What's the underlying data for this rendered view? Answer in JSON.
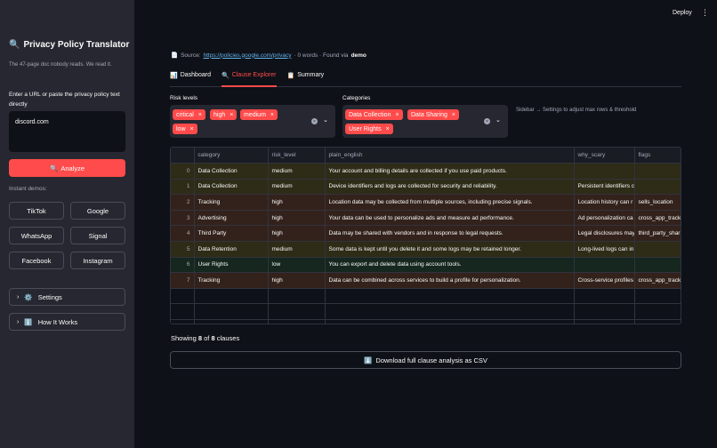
{
  "sidebar": {
    "title_icon": "🔍",
    "title": "Privacy Policy Translator",
    "subtitle": "The 47-page doc nobody reads. We read it.",
    "input_label": "Enter a URL or paste the privacy policy text directly",
    "input_value": "discord.com",
    "analyze_icon": "🔍",
    "analyze_label": "Analyze",
    "demos_label": "Instant demos:",
    "demos": [
      "TikTok",
      "Google",
      "WhatsApp",
      "Signal",
      "Facebook",
      "Instagram"
    ],
    "settings_icon": "⚙️",
    "settings_label": "Settings",
    "how_icon": "ℹ️",
    "how_label": "How It Works"
  },
  "topbar": {
    "deploy": "Deploy",
    "menu": "⋮"
  },
  "source": {
    "icon": "📄",
    "label": "Source:",
    "url": "https://policies.google.com/privacy",
    "stats": "· 0 words · Found via",
    "via": "demo"
  },
  "tabs": [
    {
      "icon": "📊",
      "label": "Dashboard",
      "active": false
    },
    {
      "icon": "🔍",
      "label": "Clause Explorer",
      "active": true
    },
    {
      "icon": "📋",
      "label": "Summary",
      "active": false
    }
  ],
  "filters": {
    "risk_label": "Risk levels",
    "risk_chips": [
      "critical",
      "high",
      "medium",
      "low"
    ],
    "cat_label": "Categories",
    "cat_chips": [
      "Data Collection",
      "Data Sharing",
      "User Rights"
    ],
    "hint": "Sidebar → Settings to adjust max rows & threshold"
  },
  "table": {
    "columns": [
      "",
      "category",
      "risk_level",
      "plain_english",
      "why_scary",
      "flags"
    ],
    "rows": [
      {
        "idx": "0",
        "category": "Data Collection",
        "risk": "medium",
        "plain": "Your account and billing details are collected if you use paid products.",
        "why": "",
        "flags": ""
      },
      {
        "idx": "1",
        "category": "Data Collection",
        "risk": "medium",
        "plain": "Device identifiers and logs are collected for security and reliability.",
        "why": "Persistent identifiers c",
        "flags": ""
      },
      {
        "idx": "2",
        "category": "Tracking",
        "risk": "high",
        "plain": "Location data may be collected from multiple sources, including precise signals.",
        "why": "Location history can r",
        "flags": "sells_location"
      },
      {
        "idx": "3",
        "category": "Advertising",
        "risk": "high",
        "plain": "Your data can be used to personalize ads and measure ad performance.",
        "why": "Ad personalization ca",
        "flags": "cross_app_tracki"
      },
      {
        "idx": "4",
        "category": "Third Party",
        "risk": "high",
        "plain": "Data may be shared with vendors and in response to legal requests.",
        "why": "Legal disclosures may",
        "flags": "third_party_shar"
      },
      {
        "idx": "5",
        "category": "Data Retention",
        "risk": "medium",
        "plain": "Some data is kept until you delete it and some logs may be retained longer.",
        "why": "Long-lived logs can in",
        "flags": ""
      },
      {
        "idx": "6",
        "category": "User Rights",
        "risk": "low",
        "plain": "You can export and delete data using account tools.",
        "why": "",
        "flags": ""
      },
      {
        "idx": "7",
        "category": "Tracking",
        "risk": "high",
        "plain": "Data can be combined across services to build a profile for personalization.",
        "why": "Cross-service profiles",
        "flags": "cross_app_tracki"
      }
    ],
    "empty_rows": 3
  },
  "showing": {
    "prefix": "Showing",
    "shown": "8",
    "of": "of",
    "total": "8",
    "suffix": "clauses"
  },
  "download": {
    "icon": "⬇️",
    "label": "Download full clause analysis as CSV"
  },
  "colors": {
    "accent": "#ff4b4b",
    "medium_row": "#2e2b17",
    "high_row": "#33221b",
    "low_row": "#15271e"
  }
}
